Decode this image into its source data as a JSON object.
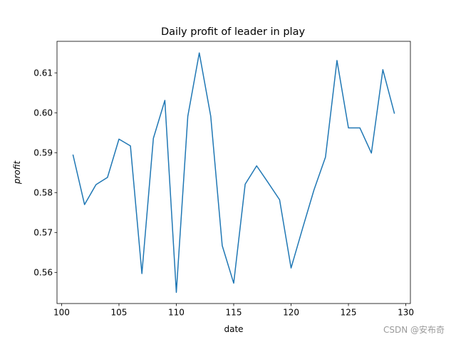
{
  "chart_data": {
    "type": "line",
    "title": "Daily profit of leader in play",
    "xlabel": "date",
    "ylabel": "profit",
    "xlim": [
      99.6,
      130.4
    ],
    "ylim": [
      0.5522,
      0.6179
    ],
    "xticks": [
      100,
      105,
      110,
      115,
      120,
      125,
      130
    ],
    "yticks": [
      0.56,
      0.57,
      0.58,
      0.59,
      0.6,
      0.61
    ],
    "ytick_labels": [
      "0.56",
      "0.57",
      "0.58",
      "0.59",
      "0.60",
      "0.61"
    ],
    "grid": false,
    "line_color": "#1f77b4",
    "series": [
      {
        "x": [
          101,
          102,
          103,
          104,
          105,
          106,
          107,
          108,
          109,
          110,
          111,
          112,
          113,
          114,
          115,
          116,
          117,
          118,
          119,
          120,
          121,
          122,
          123,
          124,
          125,
          126,
          127,
          128,
          129
        ],
        "values": [
          0.5894,
          0.577,
          0.582,
          0.5838,
          0.5934,
          0.5917,
          0.5597,
          0.5936,
          0.6031,
          0.555,
          0.5991,
          0.615,
          0.5991,
          0.5667,
          0.5573,
          0.5821,
          0.5867,
          0.5825,
          0.5782,
          0.5611,
          0.571,
          0.5807,
          0.5889,
          0.6131,
          0.5962,
          0.5962,
          0.5899,
          0.6108,
          0.5999
        ]
      }
    ]
  },
  "watermark": "CSDN @安布奇"
}
